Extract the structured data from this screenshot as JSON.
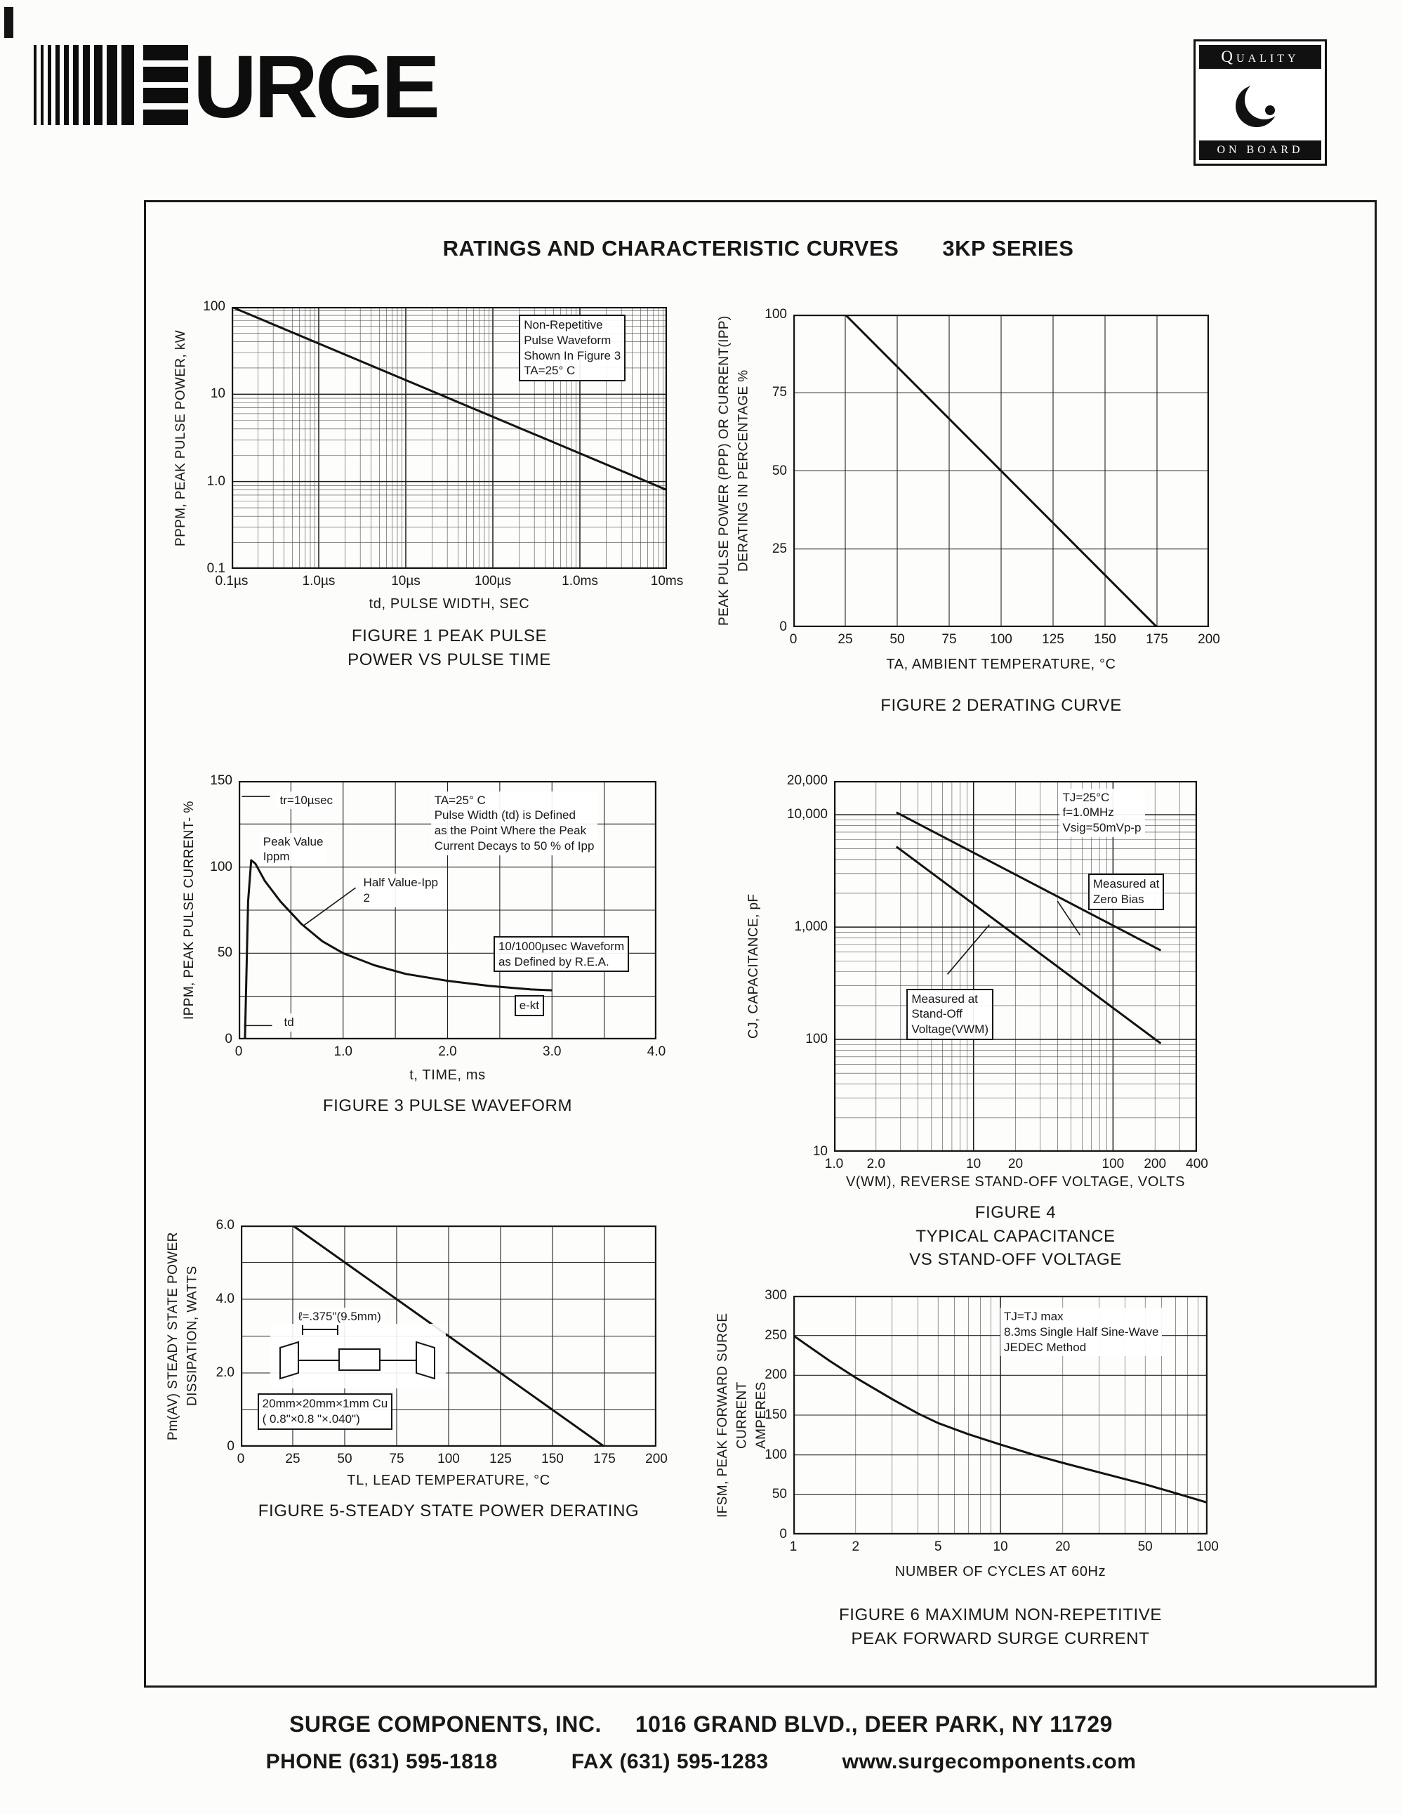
{
  "page": {
    "logo": {
      "text": "URGE"
    },
    "badge": {
      "top": "Quality",
      "bottom": "ON BOARD"
    },
    "title": "RATINGS AND CHARACTERISTIC CURVES",
    "series": "3KP SERIES",
    "footer": {
      "company": "SURGE COMPONENTS, INC.",
      "address": "1016 GRAND BLVD., DEER PARK, NY  11729",
      "phone": "PHONE (631) 595-1818",
      "fax": "FAX (631) 595-1283",
      "web": "www.surgecomponents.com"
    }
  },
  "chart_data": [
    {
      "id": "figure-1",
      "type": "line",
      "title": "FIGURE 1 PEAK PULSE\nPOWER VS PULSE TIME",
      "xlabel": "td, PULSE WIDTH, SEC",
      "ylabel": "PPPM, PEAK PULSE POWER, kW",
      "xscale": "log",
      "yscale": "log",
      "xlim": [
        1e-07,
        0.01
      ],
      "ylim": [
        0.1,
        100
      ],
      "xticks": [
        1e-07,
        1e-06,
        1e-05,
        0.0001,
        0.001,
        0.01
      ],
      "xtick_labels": [
        "0.1µs",
        "1.0µs",
        "10µs",
        "100µs",
        "1.0ms",
        "10ms"
      ],
      "yticks": [
        0.1,
        1,
        10,
        100
      ],
      "ytick_labels": [
        "0.1",
        "1.0",
        "10",
        "100"
      ],
      "series": [
        {
          "name": "peak-pulse-power",
          "points": [
            [
              1e-07,
              100
            ],
            [
              0.01,
              0.8
            ]
          ]
        }
      ],
      "annotations": [
        {
          "text": "Non-Repetitive\nPulse Waveform\nShown In Figure 3\nTA=25° C",
          "left": 66,
          "top": 3,
          "box": true
        }
      ]
    },
    {
      "id": "figure-2",
      "type": "line",
      "title": "FIGURE 2 DERATING CURVE",
      "xlabel": "TA, AMBIENT  TEMPERATURE, °C",
      "ylabel": "PEAK PULSE POWER (PPP) OR CURRENT(IPP)\nDERATING IN PERCENTAGE %",
      "xscale": "linear",
      "yscale": "linear",
      "xlim": [
        0,
        200
      ],
      "ylim": [
        0,
        100
      ],
      "xgrid": 25,
      "ygrid": 25,
      "xticks": [
        0,
        25,
        50,
        75,
        100,
        125,
        150,
        175,
        200
      ],
      "xtick_labels": [
        "0",
        "25",
        "50",
        "75",
        "100",
        "125",
        "150",
        "175",
        "200"
      ],
      "yticks": [
        0,
        25,
        50,
        75,
        100
      ],
      "ytick_labels": [
        "0",
        "25",
        "50",
        "75",
        "100"
      ],
      "series": [
        {
          "name": "derating-curve",
          "points": [
            [
              25,
              100
            ],
            [
              175,
              0
            ]
          ]
        }
      ],
      "annotations": []
    },
    {
      "id": "figure-3",
      "type": "line",
      "title": "FIGURE 3  PULSE WAVEFORM",
      "xlabel": "t, TIME, ms",
      "ylabel": "IPPM, PEAK PULSE CURRENT- %",
      "xscale": "linear",
      "yscale": "linear",
      "xlim": [
        0,
        4
      ],
      "ylim": [
        0,
        150
      ],
      "xgrid": 0.5,
      "ygrid": 25,
      "xticks": [
        0,
        1,
        2,
        3,
        4
      ],
      "xtick_labels": [
        "0",
        "1.0",
        "2.0",
        "3.0",
        "4.0"
      ],
      "yticks": [
        0,
        50,
        100,
        150
      ],
      "ytick_labels": [
        "0",
        "50",
        "100",
        "150"
      ],
      "series": [
        {
          "name": "pulse-waveform",
          "points": [
            [
              0,
              0
            ],
            [
              0.06,
              0
            ],
            [
              0.09,
              80
            ],
            [
              0.12,
              104
            ],
            [
              0.16,
              102
            ],
            [
              0.25,
              92
            ],
            [
              0.4,
              80
            ],
            [
              0.6,
              67
            ],
            [
              0.8,
              57
            ],
            [
              1,
              50
            ],
            [
              1.3,
              43
            ],
            [
              1.6,
              38
            ],
            [
              2,
              34
            ],
            [
              2.4,
              31
            ],
            [
              2.8,
              29
            ],
            [
              3,
              28.5
            ]
          ]
        }
      ],
      "leaders": [
        [
          0.03,
          141,
          0.3,
          141
        ],
        [
          1.12,
          88,
          0.62,
          66
        ],
        [
          0.05,
          8,
          0.32,
          8
        ]
      ],
      "annotations": [
        {
          "text": "tr=10µsec",
          "left": 9,
          "top": 4,
          "box": false
        },
        {
          "text": "Peak Value\nIppm",
          "left": 5,
          "top": 20,
          "box": false
        },
        {
          "text": "Half Value-Ipp\n2",
          "left": 29,
          "top": 36,
          "box": false
        },
        {
          "text": "TA=25° C\nPulse Width (td) is Defined\nas the Point Where the Peak\nCurrent Decays to 50 % of Ipp",
          "left": 46,
          "top": 4,
          "box": false
        },
        {
          "text": "10/1000µsec Waveform\nas Defined by R.E.A.",
          "left": 61,
          "top": 60,
          "box": true
        },
        {
          "text": "e-kt",
          "left": 66,
          "top": 83,
          "box": true
        },
        {
          "text": "td",
          "left": 10,
          "top": 90,
          "box": false
        }
      ]
    },
    {
      "id": "figure-4",
      "type": "line",
      "title": "FIGURE 4\nTYPICAL CAPACITANCE\nVS STAND-OFF VOLTAGE",
      "xlabel": "V(WM), REVERSE STAND-OFF VOLTAGE, VOLTS",
      "ylabel": "CJ, CAPACITANCE, pF",
      "xscale": "log",
      "yscale": "log",
      "xlim": [
        1,
        400
      ],
      "ylim": [
        10,
        20000
      ],
      "xticks": [
        1,
        2,
        10,
        20,
        100,
        200,
        400
      ],
      "xtick_labels": [
        "1.0",
        "2.0",
        "10",
        "20",
        "100",
        "200",
        "400"
      ],
      "yticks": [
        10,
        100,
        1000,
        10000,
        20000
      ],
      "ytick_labels": [
        "10",
        "100",
        "1,000",
        "10,000",
        "20,000"
      ],
      "series": [
        {
          "name": "measured-at-zero-bias",
          "points": [
            [
              2.8,
              10500
            ],
            [
              220,
              620
            ]
          ]
        },
        {
          "name": "measured-at-stand-off-voltage",
          "points": [
            [
              2.8,
              5200
            ],
            [
              220,
              92
            ]
          ]
        }
      ],
      "leaders": [
        [
          58,
          850,
          40,
          1700
        ],
        [
          6.5,
          380,
          13,
          1050
        ]
      ],
      "annotations": [
        {
          "text": "TJ=25°C\nf=1.0MHz\nVsig=50mVp-p",
          "left": 62,
          "top": 2,
          "box": false
        },
        {
          "text": "Measured at\nZero Bias",
          "left": 70,
          "top": 25,
          "box": true
        },
        {
          "text": "Measured at\nStand-Off\nVoltage(VWM)",
          "left": 20,
          "top": 56,
          "box": true
        }
      ]
    },
    {
      "id": "figure-5",
      "type": "line",
      "title": "FIGURE 5-STEADY STATE POWER DERATING",
      "xlabel": "TL, LEAD  TEMPERATURE, °C",
      "ylabel": "Pm(AV) STEADY STATE POWER\nDISSIPATION, WATTS",
      "xscale": "linear",
      "yscale": "linear",
      "xlim": [
        0,
        200
      ],
      "ylim": [
        0,
        6
      ],
      "xgrid": 25,
      "ygrid": 1,
      "xticks": [
        0,
        25,
        50,
        75,
        100,
        125,
        150,
        175,
        200
      ],
      "xtick_labels": [
        "0",
        "25",
        "50",
        "75",
        "100",
        "125",
        "150",
        "175",
        "200"
      ],
      "yticks": [
        0,
        2,
        4,
        6
      ],
      "ytick_labels": [
        "0",
        "2.0",
        "4.0",
        "6.0"
      ],
      "series": [
        {
          "name": "steady-state-power",
          "points": [
            [
              25,
              6
            ],
            [
              175,
              0
            ]
          ]
        }
      ],
      "annotations": [
        {
          "text": "ℓ=.375\"(9.5mm)",
          "left": 13,
          "top": 37,
          "box": false
        },
        {
          "text": "20mm×20mm×1mm Cu\n( 0.8\"×0.8 \"×.040\")",
          "left": 4,
          "top": 76,
          "box": true
        }
      ]
    },
    {
      "id": "figure-6",
      "type": "line",
      "title": "FIGURE 6  MAXIMUM NON-REPETITIVE\nPEAK FORWARD SURGE CURRENT",
      "xlabel": "NUMBER  OF  CYCLES  AT  60Hz",
      "ylabel": "IFSM, PEAK FORWARD SURGE CURRENT\nAMPERES",
      "xscale": "log",
      "yscale": "linear",
      "xlim": [
        1,
        100
      ],
      "ylim": [
        0,
        300
      ],
      "ygrid": 50,
      "xticks": [
        1,
        2,
        5,
        10,
        20,
        50,
        100
      ],
      "xtick_labels": [
        "1",
        "2",
        "5",
        "10",
        "20",
        "50",
        "100"
      ],
      "yticks": [
        0,
        50,
        100,
        150,
        200,
        250,
        300
      ],
      "ytick_labels": [
        "0",
        "50",
        "100",
        "150",
        "200",
        "250",
        "300"
      ],
      "series": [
        {
          "name": "peak-forward-surge-current",
          "points": [
            [
              1,
              250
            ],
            [
              1.5,
              218
            ],
            [
              2,
              197
            ],
            [
              3,
              170
            ],
            [
              4,
              152
            ],
            [
              5,
              140
            ],
            [
              7,
              126
            ],
            [
              10,
              113
            ],
            [
              15,
              99
            ],
            [
              20,
              90
            ],
            [
              30,
              78
            ],
            [
              50,
              63
            ],
            [
              70,
              52
            ],
            [
              100,
              40
            ]
          ]
        }
      ],
      "annotations": [
        {
          "text": "TJ=TJ max\n8.3ms Single Half Sine-Wave\nJEDEC Method",
          "left": 50,
          "top": 5,
          "box": false
        }
      ]
    }
  ]
}
